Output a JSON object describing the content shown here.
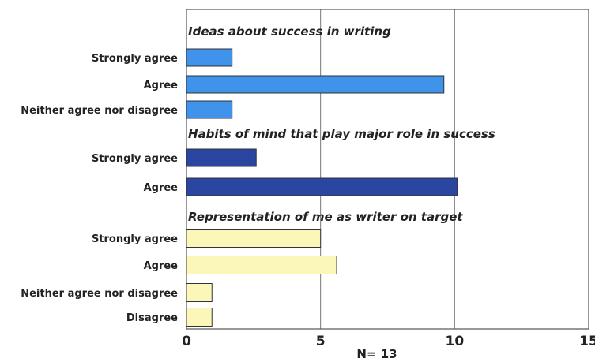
{
  "chart_data": {
    "type": "bar",
    "orientation": "horizontal",
    "xlim": [
      0,
      15
    ],
    "x_ticks": [
      0,
      5,
      10,
      15
    ],
    "grid": true,
    "footer": "N= 13",
    "groups": [
      {
        "title": "Ideas about success in writing",
        "color": "#3f93ea",
        "bars": [
          {
            "label": "Strongly agree",
            "value": 1.7
          },
          {
            "label": "Agree",
            "value": 9.6
          },
          {
            "label": "Neither agree nor disagree",
            "value": 1.7
          }
        ]
      },
      {
        "title": "Habits of mind that play major role in success",
        "color": "#2b46a0",
        "bars": [
          {
            "label": "Strongly agree",
            "value": 2.6
          },
          {
            "label": "Agree",
            "value": 10.1
          }
        ]
      },
      {
        "title": "Representation of me as writer on target",
        "color": "#fbf7b8",
        "bars": [
          {
            "label": "Strongly agree",
            "value": 5.0
          },
          {
            "label": "Agree",
            "value": 5.6
          },
          {
            "label": "Neither agree nor disagree",
            "value": 0.95
          },
          {
            "label": "Disagree",
            "value": 0.95
          }
        ]
      }
    ]
  }
}
